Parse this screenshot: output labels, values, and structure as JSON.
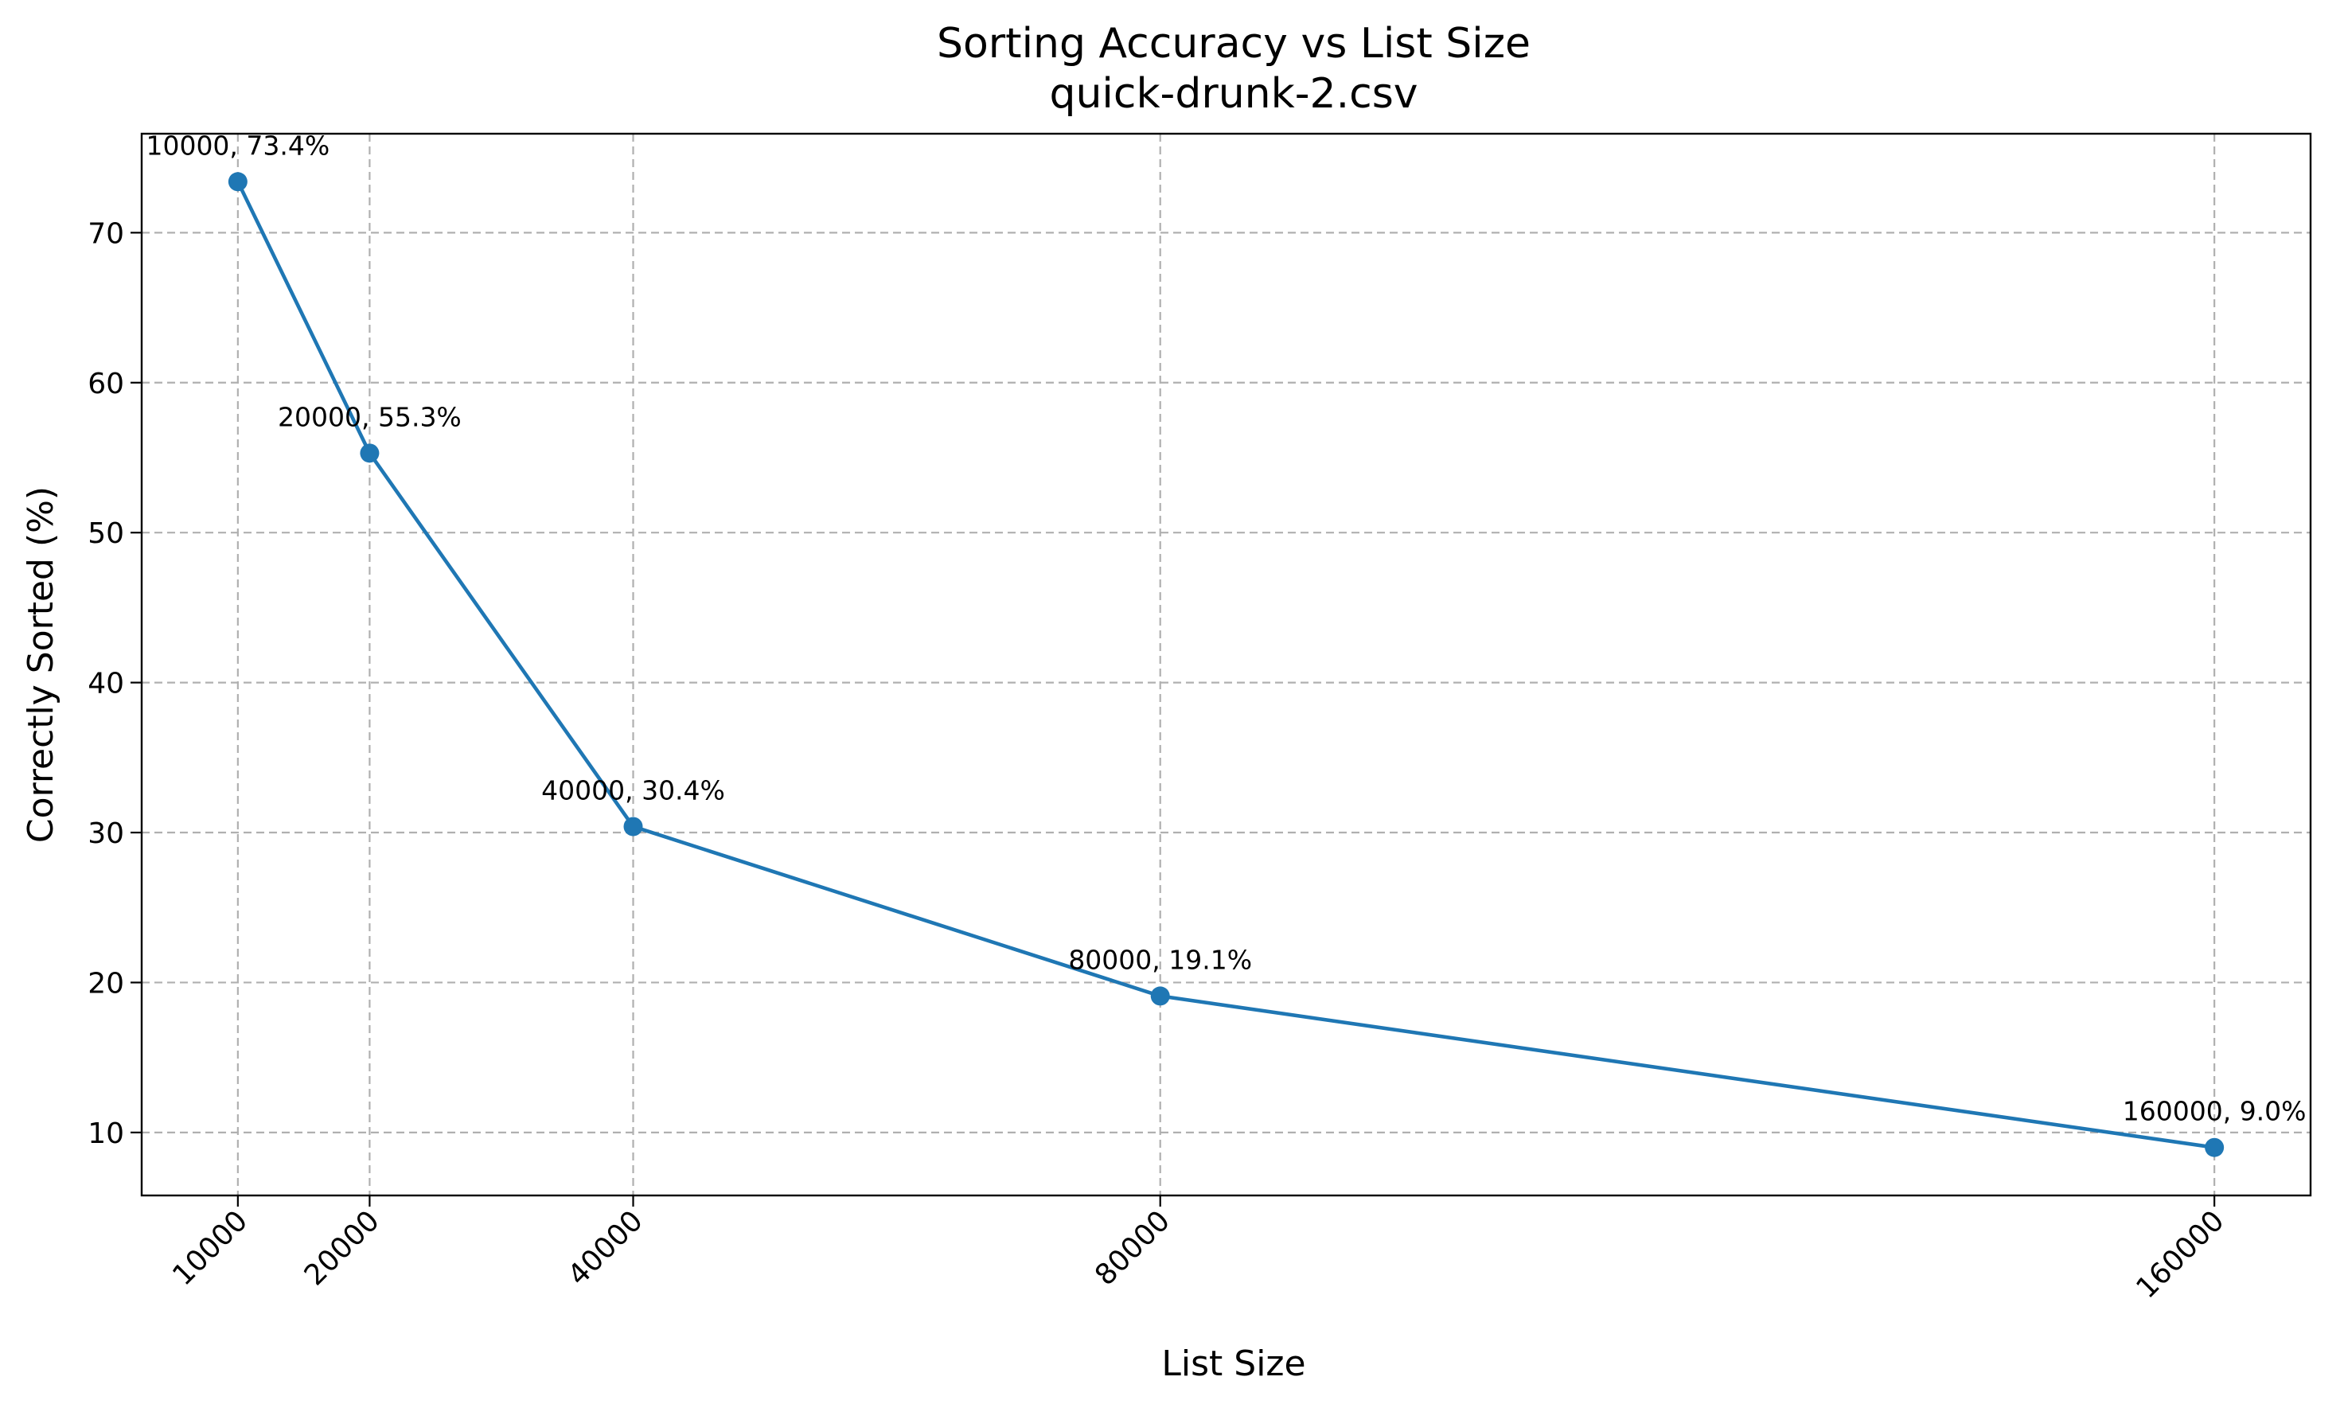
{
  "chart_data": {
    "type": "line",
    "title": "Sorting Accuracy vs List Size",
    "subtitle": "quick-drunk-2.csv",
    "xlabel": "List Size",
    "ylabel": "Correctly Sorted (%)",
    "x": [
      10000,
      20000,
      40000,
      80000,
      160000
    ],
    "x_ticks": [
      "10000",
      "20000",
      "40000",
      "80000",
      "160000"
    ],
    "xlim": [
      2700,
      167300
    ],
    "y_ticks": [
      "10",
      "20",
      "30",
      "40",
      "50",
      "60",
      "70"
    ],
    "ylim": [
      5.8,
      76.6
    ],
    "grid": true,
    "series": [
      {
        "values": [
          73.4,
          55.3,
          30.4,
          19.1,
          9.0
        ],
        "point_labels": [
          "10000, 73.4%",
          "20000, 55.3%",
          "40000, 30.4%",
          "80000, 19.1%",
          "160000, 9.0%"
        ],
        "color": "#1f77b4"
      }
    ]
  }
}
